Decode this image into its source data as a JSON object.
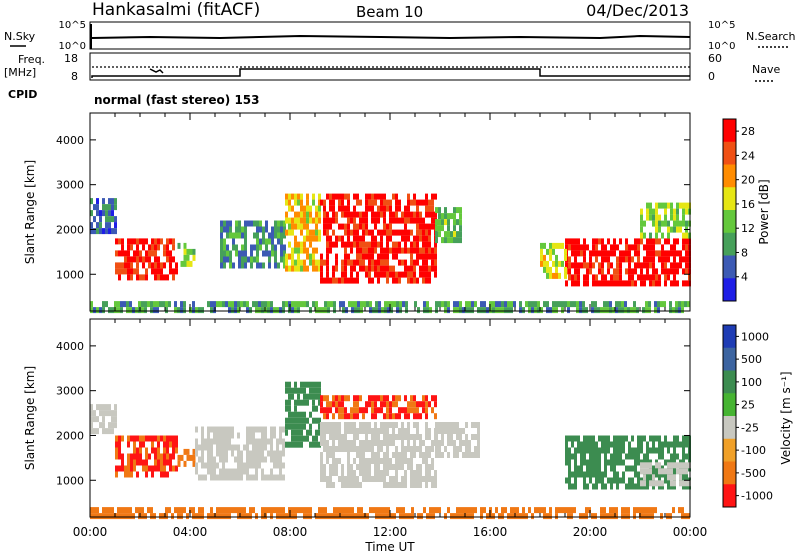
{
  "header": {
    "station": "Hankasalmi (fitACF)",
    "beam": "Beam 10",
    "date": "04/Dec/2013"
  },
  "nsky_panel": {
    "left_label": "N.Sky",
    "right_label": "N.Search",
    "ticks_left": [
      "10^5",
      "10^0"
    ],
    "ticks_right": [
      "10^5",
      "10^0"
    ]
  },
  "freq_panel": {
    "left_label_1": "Freq.",
    "left_label_2": "[MHz]",
    "right_label": "Nave",
    "ticks_left": [
      "18",
      "8"
    ],
    "ticks_right": [
      "60",
      "0"
    ]
  },
  "cpid": {
    "label": "CPID",
    "mode": "normal (fast stereo) 153"
  },
  "colors": {
    "power": [
      "#1e1ee6",
      "#3c5ab4",
      "#46a05a",
      "#64c83c",
      "#e6e614",
      "#ff8c00",
      "#f05014",
      "#ff0000"
    ],
    "velocity": [
      "#1e3cb4",
      "#3c64a0",
      "#3c8c50",
      "#46b432",
      "#c8c8c0",
      "#f0a028",
      "#f07814",
      "#ff1414"
    ]
  },
  "chart_data": [
    {
      "type": "heatmap",
      "name": "power",
      "ylabel": "Slant Range [km]",
      "xlabel": "",
      "x_ticks": [
        "00:00",
        "04:00",
        "08:00",
        "12:00",
        "16:00",
        "20:00",
        "00:00"
      ],
      "x_range_hours": [
        0,
        24
      ],
      "y_range": [
        180,
        4600
      ],
      "y_ticks": [
        1000,
        2000,
        3000,
        4000
      ],
      "colorbar_label": "Power [dB]",
      "colorbar_ticks": [
        4,
        8,
        12,
        16,
        20,
        24,
        28
      ],
      "colorbar_range": [
        0,
        30
      ],
      "regions": [
        {
          "x": [
            0.0,
            1.0
          ],
          "y": [
            2000,
            2700
          ],
          "value": 7
        },
        {
          "x": [
            1.0,
            3.5
          ],
          "y": [
            900,
            1800
          ],
          "value": 27
        },
        {
          "x": [
            3.5,
            4.2
          ],
          "y": [
            1200,
            1700
          ],
          "value": 14
        },
        {
          "x": [
            5.2,
            7.8
          ],
          "y": [
            1200,
            2200
          ],
          "value": 9
        },
        {
          "x": [
            7.8,
            9.2
          ],
          "y": [
            1100,
            2800
          ],
          "value": 18
        },
        {
          "x": [
            9.2,
            13.8
          ],
          "y": [
            900,
            2800
          ],
          "value": 28
        },
        {
          "x": [
            13.8,
            14.8
          ],
          "y": [
            1800,
            2500
          ],
          "value": 12
        },
        {
          "x": [
            19.0,
            24.0
          ],
          "y": [
            800,
            1800
          ],
          "value": 29
        },
        {
          "x": [
            18.0,
            19.0
          ],
          "y": [
            1000,
            1700
          ],
          "value": 16
        },
        {
          "x": [
            22.0,
            24.0
          ],
          "y": [
            1900,
            2600
          ],
          "value": 14
        },
        {
          "x": [
            0.0,
            24.0
          ],
          "y": [
            200,
            400
          ],
          "value": 10
        }
      ]
    },
    {
      "type": "heatmap",
      "name": "velocity",
      "ylabel": "Slant Range [km]",
      "xlabel": "Time UT",
      "x_ticks": [
        "00:00",
        "04:00",
        "08:00",
        "12:00",
        "16:00",
        "20:00",
        "00:00"
      ],
      "x_range_hours": [
        0,
        24
      ],
      "y_range": [
        180,
        4600
      ],
      "y_ticks": [
        1000,
        2000,
        3000,
        4000
      ],
      "colorbar_label": "Velocity [m s⁻¹]",
      "colorbar_ticks": [
        "1000",
        "500",
        "100",
        "25",
        "-25",
        "-100",
        "-500",
        "-1000"
      ],
      "regions": [
        {
          "x": [
            0.0,
            1.0
          ],
          "y": [
            2100,
            2700
          ],
          "value": 0
        },
        {
          "x": [
            1.0,
            3.5
          ],
          "y": [
            1100,
            2000
          ],
          "value": -300
        },
        {
          "x": [
            3.5,
            4.2
          ],
          "y": [
            1300,
            1700
          ],
          "value": -200
        },
        {
          "x": [
            4.2,
            7.8
          ],
          "y": [
            1000,
            2200
          ],
          "value": 0
        },
        {
          "x": [
            7.8,
            9.2
          ],
          "y": [
            1800,
            3200
          ],
          "value": 150
        },
        {
          "x": [
            9.2,
            13.8
          ],
          "y": [
            900,
            2300
          ],
          "value": 0
        },
        {
          "x": [
            9.2,
            13.8
          ],
          "y": [
            2400,
            2900
          ],
          "value": -300
        },
        {
          "x": [
            13.8,
            15.5
          ],
          "y": [
            1600,
            2300
          ],
          "value": 0
        },
        {
          "x": [
            19.0,
            24.0
          ],
          "y": [
            900,
            2000
          ],
          "value": 200
        },
        {
          "x": [
            22.0,
            24.0
          ],
          "y": [
            900,
            1400
          ],
          "value": 0
        },
        {
          "x": [
            0.0,
            24.0
          ],
          "y": [
            200,
            400
          ],
          "value": -150
        }
      ]
    }
  ]
}
